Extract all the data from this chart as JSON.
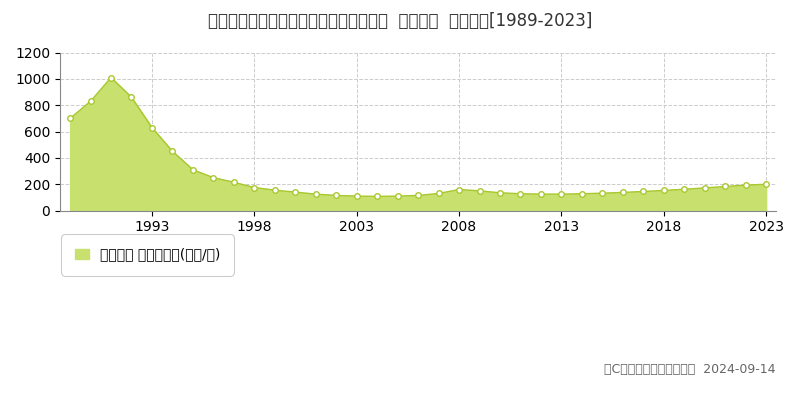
{
  "title": "愛知県名古屋市千種区井上町４３番１外  地価公示  地価推移[1989-2023]",
  "years": [
    1989,
    1990,
    1991,
    1992,
    1993,
    1994,
    1995,
    1996,
    1997,
    1998,
    1999,
    2000,
    2001,
    2002,
    2003,
    2004,
    2005,
    2006,
    2007,
    2008,
    2009,
    2010,
    2011,
    2012,
    2013,
    2014,
    2015,
    2016,
    2017,
    2018,
    2019,
    2020,
    2021,
    2022,
    2023
  ],
  "values": [
    700,
    830,
    1010,
    860,
    630,
    450,
    310,
    250,
    215,
    175,
    155,
    140,
    125,
    115,
    110,
    108,
    110,
    115,
    130,
    160,
    150,
    135,
    128,
    125,
    125,
    128,
    132,
    138,
    145,
    153,
    162,
    172,
    183,
    193,
    200
  ],
  "fill_color": "#c8e06e",
  "line_color": "#a8c830",
  "marker_facecolor": "#ffffff",
  "marker_edgecolor": "#a8c830",
  "ylim": [
    0,
    1200
  ],
  "yticks": [
    0,
    200,
    400,
    600,
    800,
    1000,
    1200
  ],
  "xtick_years": [
    1993,
    1998,
    2003,
    2008,
    2013,
    2018,
    2023
  ],
  "legend_label": "地価公示 平均坪単価(万円/坪)",
  "legend_color": "#c8e06e",
  "copyright_text": "（C）土地価格ドットコム  2024-09-14",
  "bg_color": "#ffffff",
  "plot_bg_color": "#ffffff",
  "grid_color": "#cccccc",
  "grid_style": "--",
  "title_fontsize": 12,
  "axis_fontsize": 10,
  "legend_fontsize": 10,
  "copyright_fontsize": 9,
  "text_color": "#333333",
  "copyright_color": "#666666"
}
